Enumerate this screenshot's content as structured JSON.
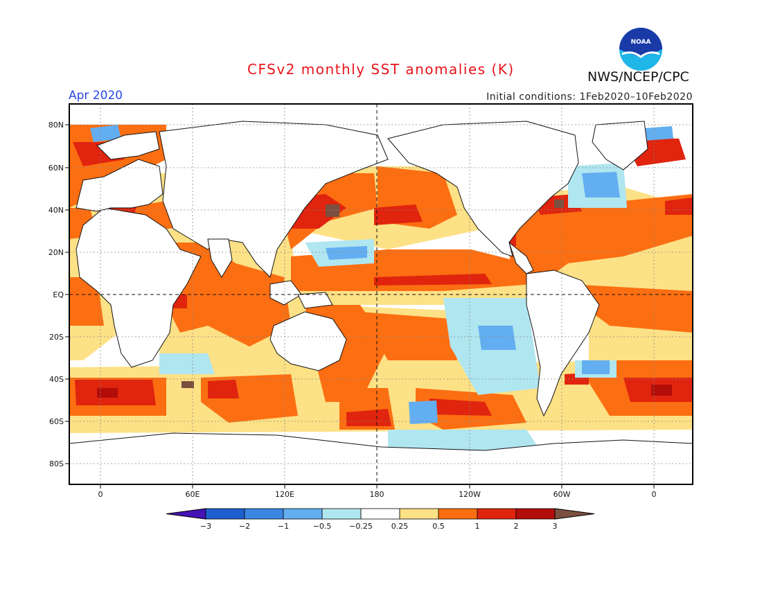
{
  "title": "CFSv2 monthly SST anomalies (K)",
  "org": "NWS/NCEP/CPC",
  "logo_text": "NOAA",
  "forecast_month": "Apr 2020",
  "initial_conditions": "Initial conditions: 1Feb2020–10Feb2020",
  "lat_labels": [
    "80N",
    "60N",
    "40N",
    "20N",
    "EQ",
    "20S",
    "40S",
    "60S",
    "80S"
  ],
  "lon_labels": [
    "0",
    "60E",
    "120E",
    "180",
    "120W",
    "60W",
    "0"
  ],
  "colorbar": {
    "labels": [
      "−3",
      "−2",
      "−1",
      "−0.5",
      "−0.25",
      "0.25",
      "0.5",
      "1",
      "2",
      "3"
    ],
    "colors": [
      "#4512b6",
      "#1d5fcf",
      "#3b86e3",
      "#63aef0",
      "#b0e6f0",
      "#ffffff",
      "#fde186",
      "#fc6e12",
      "#e0240e",
      "#b30d0a",
      "#7b5040"
    ]
  },
  "colors": {
    "title": "#e8141a",
    "month": "#2747e4",
    "land": "#ffffff"
  }
}
